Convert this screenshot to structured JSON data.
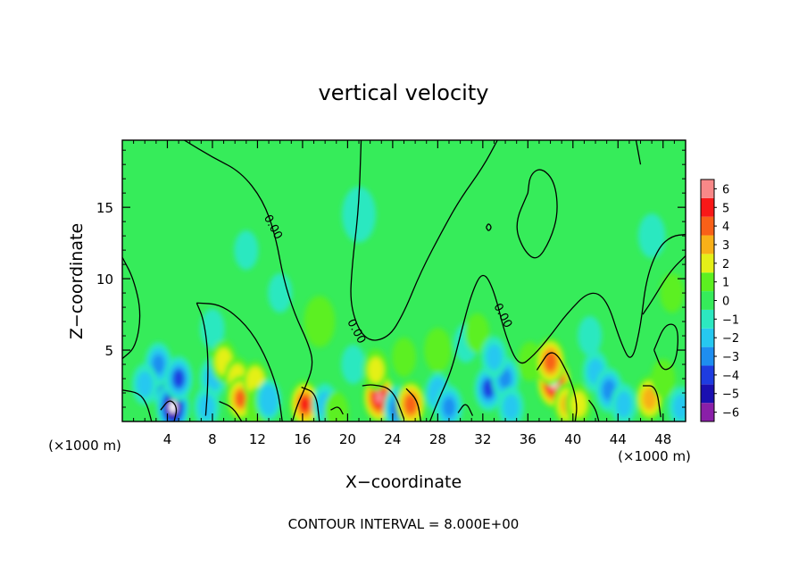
{
  "chart_data": {
    "type": "heatmap",
    "title": "vertical velocity",
    "xlabel": "X−coordinate",
    "ylabel": "Z−coordinate",
    "x_unit": "(×1000 m)",
    "y_unit": "(×1000 m)",
    "xlim": [
      0,
      50
    ],
    "ylim": [
      0,
      19.7
    ],
    "x_ticks": [
      4,
      8,
      12,
      16,
      20,
      24,
      28,
      32,
      36,
      40,
      44,
      48
    ],
    "x_tick_labels": [
      "4",
      "8",
      "12",
      "16",
      "20",
      "24",
      "28",
      "32",
      "36",
      "40",
      "44",
      "48"
    ],
    "y_ticks": [
      5,
      10,
      15
    ],
    "y_tick_labels": [
      "5",
      "10",
      "15"
    ],
    "footer": "CONTOUR INTERVAL = 8.000E+00",
    "contour_label": "0.00",
    "colorbar": {
      "levels": [
        -6,
        -5,
        -4,
        -3,
        -2,
        -1,
        0,
        1,
        2,
        3,
        4,
        5,
        6
      ],
      "labels": [
        "−6",
        "−5",
        "−4",
        "−3",
        "−2",
        "−1",
        "0",
        "1",
        "2",
        "3",
        "4",
        "5",
        "6"
      ],
      "colors": [
        "#8a1fa8",
        "#1a0fb0",
        "#1e3ce0",
        "#1e8ef0",
        "#26c8f0",
        "#2ce8c0",
        "#36ec5a",
        "#5cf020",
        "#e4f018",
        "#f8b018",
        "#f86018",
        "#f81818",
        "#f88888"
      ]
    },
    "cells": [
      {
        "x": 4.0,
        "z": 2.2,
        "w": -4.5
      },
      {
        "x": 4.5,
        "z": 1.0,
        "w": -6.5
      },
      {
        "x": 3.2,
        "z": 4.0,
        "w": -3.0
      },
      {
        "x": 5.0,
        "z": 3.0,
        "w": -3.5
      },
      {
        "x": 2.0,
        "z": 2.6,
        "w": -2.0
      },
      {
        "x": 8.0,
        "z": 3.0,
        "w": -2.0
      },
      {
        "x": 8.0,
        "z": 6.5,
        "w": -1.2
      },
      {
        "x": 7.5,
        "z": 1.0,
        "w": -2.0
      },
      {
        "x": 9.0,
        "z": 4.2,
        "w": 2.2
      },
      {
        "x": 10.2,
        "z": 3.0,
        "w": 2.5
      },
      {
        "x": 10.5,
        "z": 1.6,
        "w": 3.6
      },
      {
        "x": 11.8,
        "z": 2.8,
        "w": 1.6
      },
      {
        "x": 12.0,
        "z": 1.0,
        "w": 1.5
      },
      {
        "x": 13.0,
        "z": 1.5,
        "w": -1.5
      },
      {
        "x": 11.0,
        "z": 12.0,
        "w": -1.0
      },
      {
        "x": 14.0,
        "z": 9.0,
        "w": -1.0
      },
      {
        "x": 16.2,
        "z": 1.2,
        "w": 4.6
      },
      {
        "x": 18.0,
        "z": 1.2,
        "w": -2.0
      },
      {
        "x": 19.0,
        "z": 0.7,
        "w": 1.0
      },
      {
        "x": 17.5,
        "z": 7.0,
        "w": 0.6
      },
      {
        "x": 20.5,
        "z": 4.0,
        "w": -1.0
      },
      {
        "x": 22.8,
        "z": 1.7,
        "w": 6.0
      },
      {
        "x": 22.5,
        "z": 3.6,
        "w": 2.0
      },
      {
        "x": 24.5,
        "z": 0.9,
        "w": -4.0
      },
      {
        "x": 25.6,
        "z": 1.2,
        "w": 4.5
      },
      {
        "x": 25.0,
        "z": 4.5,
        "w": 1.0
      },
      {
        "x": 28.0,
        "z": 2.0,
        "w": -1.5
      },
      {
        "x": 28.0,
        "z": 5.0,
        "w": 0.8
      },
      {
        "x": 29.0,
        "z": 1.0,
        "w": -3.0
      },
      {
        "x": 30.5,
        "z": 5.5,
        "w": -1.0
      },
      {
        "x": 31.5,
        "z": 6.2,
        "w": 1.0
      },
      {
        "x": 32.5,
        "z": 2.3,
        "w": -3.5
      },
      {
        "x": 34.0,
        "z": 3.0,
        "w": -3.0
      },
      {
        "x": 34.5,
        "z": 1.0,
        "w": -2.0
      },
      {
        "x": 33.0,
        "z": 4.5,
        "w": -2.0
      },
      {
        "x": 36.2,
        "z": 4.2,
        "w": 1.0
      },
      {
        "x": 38.3,
        "z": 2.8,
        "w": 7.0
      },
      {
        "x": 38.0,
        "z": 4.2,
        "w": 4.5
      },
      {
        "x": 39.5,
        "z": 1.2,
        "w": 3.0
      },
      {
        "x": 40.5,
        "z": 1.2,
        "w": 2.0
      },
      {
        "x": 42.0,
        "z": 3.5,
        "w": -2.0
      },
      {
        "x": 43.2,
        "z": 2.2,
        "w": -3.2
      },
      {
        "x": 44.5,
        "z": 1.2,
        "w": -2.0
      },
      {
        "x": 41.5,
        "z": 6.0,
        "w": -1.0
      },
      {
        "x": 46.8,
        "z": 1.6,
        "w": 3.5
      },
      {
        "x": 48.0,
        "z": 3.0,
        "w": 1.0
      },
      {
        "x": 48.8,
        "z": 9.0,
        "w": 1.0
      },
      {
        "x": 49.6,
        "z": 1.0,
        "w": -2.0
      },
      {
        "x": 47.0,
        "z": 13.0,
        "w": -0.8
      },
      {
        "x": 21.0,
        "z": 14.5,
        "w": -0.5
      }
    ],
    "contours": [
      {
        "label_at": [
          13.1,
          13.5
        ],
        "points": [
          [
            5.5,
            19.7
          ],
          [
            8,
            18.5
          ],
          [
            10.5,
            17.5
          ],
          [
            12.5,
            15.5
          ],
          [
            13.6,
            13
          ],
          [
            14.3,
            10
          ],
          [
            15.3,
            7.5
          ],
          [
            16.5,
            5.5
          ],
          [
            17,
            4
          ],
          [
            16.2,
            2.3
          ],
          [
            15.5,
            1.1
          ],
          [
            15.1,
            0
          ]
        ]
      },
      {
        "label_at": [
          20.5,
          6.2
        ],
        "points": [
          [
            21.2,
            19.7
          ],
          [
            21,
            15
          ],
          [
            20.4,
            11
          ],
          [
            20.2,
            8
          ],
          [
            21.5,
            5.6
          ],
          [
            23.6,
            5.8
          ],
          [
            25,
            7.6
          ],
          [
            26.5,
            10.5
          ],
          [
            28.5,
            13.5
          ],
          [
            30,
            15.6
          ],
          [
            32,
            17.8
          ],
          [
            33.3,
            19.7
          ]
        ]
      },
      {
        "label_at": [
          33.5,
          7.3
        ],
        "points": [
          [
            27.3,
            0
          ],
          [
            28,
            1.4
          ],
          [
            29.2,
            3.5
          ],
          [
            30,
            6
          ],
          [
            31,
            9
          ],
          [
            32,
            10.6
          ],
          [
            33,
            9.2
          ],
          [
            34,
            6
          ],
          [
            35.2,
            3.8
          ],
          [
            36.5,
            4.6
          ],
          [
            38,
            6
          ],
          [
            39.5,
            7.6
          ],
          [
            41.5,
            9.2
          ],
          [
            43,
            8.6
          ],
          [
            44.2,
            5.6
          ],
          [
            45.2,
            4
          ],
          [
            46,
            6.6
          ],
          [
            46.5,
            10
          ],
          [
            47.6,
            12.2
          ],
          [
            48.8,
            13
          ],
          [
            50,
            13.1
          ]
        ]
      },
      {
        "label_at": null,
        "points": [
          [
            36,
            16
          ],
          [
            36.2,
            17.3
          ],
          [
            37.2,
            17.8
          ],
          [
            38.4,
            16.8
          ],
          [
            38.7,
            14.6
          ],
          [
            38,
            12.7
          ],
          [
            36.8,
            11.2
          ],
          [
            35.6,
            12
          ],
          [
            34.8,
            13.8
          ],
          [
            36,
            16
          ]
        ]
      },
      {
        "label_at": null,
        "points": [
          [
            46,
            18
          ],
          [
            45.6,
            19.7
          ]
        ]
      },
      {
        "label_at": null,
        "points": [
          [
            46.2,
            7.5
          ],
          [
            46.9,
            8.3
          ],
          [
            48.6,
            10.5
          ],
          [
            50,
            11.6
          ]
        ]
      },
      {
        "label_at": null,
        "points": [
          [
            47.2,
            5
          ],
          [
            48.2,
            6.9
          ],
          [
            49.4,
            6.7
          ],
          [
            49.2,
            4.1
          ],
          [
            48,
            3.4
          ],
          [
            47.2,
            5
          ]
        ]
      },
      {
        "label_at": null,
        "points": [
          [
            0,
            11.5
          ],
          [
            1,
            10
          ],
          [
            1.7,
            7.6
          ],
          [
            1.2,
            5.2
          ],
          [
            0,
            4.4
          ]
        ]
      },
      {
        "label_at": null,
        "points": [
          [
            6.6,
            8.3
          ],
          [
            7.2,
            7.2
          ],
          [
            7.6,
            5
          ],
          [
            7.6,
            2.5
          ],
          [
            7.4,
            0.4
          ]
        ]
      },
      {
        "label_at": null,
        "points": [
          [
            6.6,
            8.3
          ],
          [
            8.8,
            8.2
          ],
          [
            11,
            6.8
          ],
          [
            12.6,
            4.8
          ],
          [
            13.8,
            2.3
          ],
          [
            14.2,
            0
          ]
        ]
      },
      {
        "label_at": null,
        "points": [
          [
            0,
            2.2
          ],
          [
            1.5,
            2
          ],
          [
            2.2,
            1.2
          ],
          [
            2.6,
            0
          ]
        ]
      },
      {
        "label_at": null,
        "points": [
          [
            8.6,
            1.4
          ],
          [
            9.8,
            1
          ],
          [
            10.6,
            0
          ]
        ]
      },
      {
        "label_at": null,
        "points": [
          [
            15.9,
            2.4
          ],
          [
            17.2,
            2
          ],
          [
            17.5,
            0
          ]
        ]
      },
      {
        "label_at": null,
        "points": [
          [
            21.3,
            2.5
          ],
          [
            22.2,
            2.6
          ],
          [
            24,
            2.3
          ],
          [
            25,
            0.2
          ]
        ]
      },
      {
        "label_at": null,
        "points": [
          [
            25.2,
            2.3
          ],
          [
            26.2,
            1.5
          ],
          [
            26.5,
            0
          ]
        ]
      },
      {
        "label_at": null,
        "points": [
          [
            36.8,
            3.6
          ],
          [
            38.2,
            5.3
          ],
          [
            39.8,
            3
          ],
          [
            40.4,
            1.2
          ],
          [
            40.2,
            0
          ]
        ]
      },
      {
        "label_at": null,
        "points": [
          [
            46.2,
            2.5
          ],
          [
            47.4,
            2.5
          ],
          [
            47.8,
            0.3
          ]
        ]
      },
      {
        "label_at": null,
        "points": [
          [
            32.3,
            13.6
          ],
          [
            32.5,
            13.3
          ],
          [
            32.8,
            13.6
          ],
          [
            32.5,
            13.9
          ],
          [
            32.3,
            13.6
          ]
        ]
      },
      {
        "label_at": null,
        "points": [
          [
            3.4,
            0.8
          ],
          [
            4.2,
            1.6
          ],
          [
            4.9,
            1
          ],
          [
            4.6,
            0
          ]
        ]
      },
      {
        "label_at": null,
        "points": [
          [
            18.5,
            0.8
          ],
          [
            19.2,
            1.1
          ],
          [
            19.6,
            0.5
          ]
        ]
      },
      {
        "label_at": null,
        "points": [
          [
            29.8,
            0.6
          ],
          [
            30.5,
            1.4
          ],
          [
            31.1,
            0.4
          ]
        ]
      },
      {
        "label_at": null,
        "points": [
          [
            41.4,
            1.5
          ],
          [
            42,
            0.9
          ],
          [
            42.3,
            0
          ]
        ]
      }
    ]
  }
}
